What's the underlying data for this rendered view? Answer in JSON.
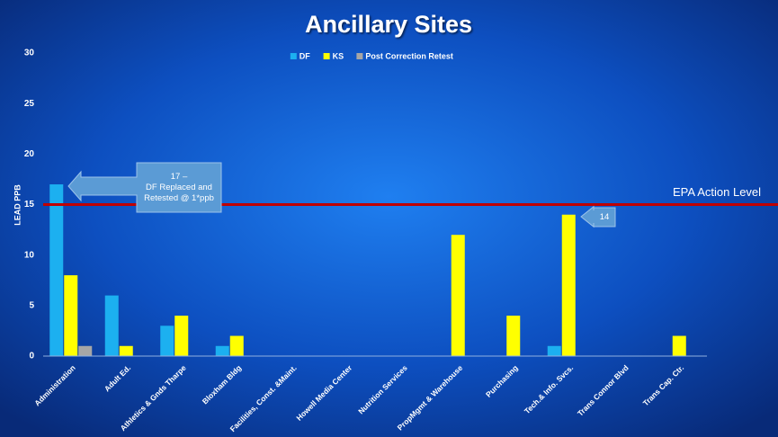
{
  "chart_data": {
    "type": "bar",
    "title": "Ancillary Sites",
    "y_label": "LEAD PPB",
    "categories": [
      "Administration",
      "Adult Ed.",
      "Athletics & Gnds Tharpe",
      "Bloxham Bldg",
      "Facilities, Const. &Maint.",
      "Howell Media Center",
      "Nutrition Services",
      "PropMgmt & Warehouse",
      "Purchasing",
      "Tech.& Info. Svcs.",
      "Trans Connor Blvd",
      "Trans Cap. Ctr."
    ],
    "series": [
      {
        "name": "DF",
        "color": "#1cb0f0",
        "values": [
          17,
          6,
          3,
          1,
          null,
          null,
          null,
          null,
          null,
          1,
          null,
          null
        ]
      },
      {
        "name": "KS",
        "color": "#ffff00",
        "values": [
          8,
          1,
          4,
          2,
          null,
          null,
          null,
          12,
          4,
          14,
          null,
          2
        ]
      },
      {
        "name": "Post Correction Retest",
        "color": "#a6a6a6",
        "values": [
          1,
          null,
          null,
          null,
          null,
          null,
          null,
          null,
          null,
          null,
          null,
          null
        ]
      }
    ],
    "ylim": [
      0,
      30
    ],
    "yticks": [
      0,
      5,
      10,
      15,
      20,
      25,
      30
    ],
    "grid": false,
    "legend": "top",
    "reference_line": {
      "value": 15,
      "label": "EPA Action Level",
      "color": "#c00000"
    },
    "annotations": [
      {
        "lines": [
          "17 –",
          "DF Replaced and",
          "Retested @ 1*ppb"
        ]
      },
      {
        "lines": [
          "14"
        ]
      }
    ]
  }
}
